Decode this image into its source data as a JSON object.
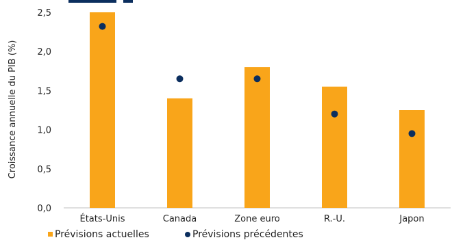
{
  "chart_data": {
    "type": "bar",
    "ylabel": "Croissance annuelle du PIB (%)",
    "ylim": [
      0,
      2.5
    ],
    "yticks": [
      "0,0",
      "0,5",
      "1,0",
      "1,5",
      "2,0",
      "2,5"
    ],
    "categories": [
      "États-Unis",
      "Canada",
      "Zone euro",
      "R.-U.",
      "Japon"
    ],
    "series": [
      {
        "name": "Prévisions actuelles",
        "type": "bar",
        "color": "#F9A51A",
        "values": [
          2.5,
          1.4,
          1.8,
          1.55,
          1.25
        ]
      },
      {
        "name": "Prévisions précédentes",
        "type": "scatter",
        "color": "#0B2E5E",
        "values": [
          2.32,
          1.65,
          1.65,
          1.2,
          0.95
        ]
      }
    ],
    "legend": "bottom-left",
    "grid": false
  }
}
